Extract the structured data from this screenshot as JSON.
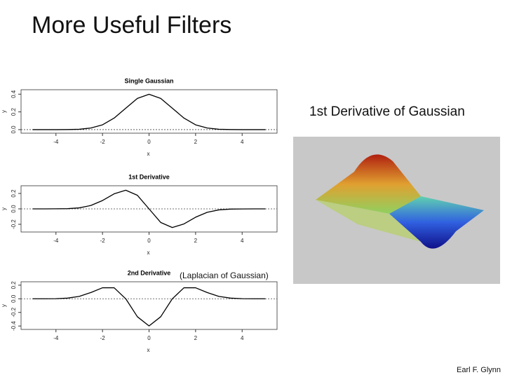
{
  "slide": {
    "title": "More Useful Filters",
    "caption": "1st Derivative of Gaussian",
    "annotation": "(Laplacian of Gaussian)",
    "footer": "Earl F. Glynn"
  },
  "chart_data": [
    {
      "type": "line",
      "title": "Single Gaussian",
      "x_label": "x",
      "y_label": "y",
      "color": "#000000",
      "x": [
        -5,
        -4.5,
        -4,
        -3.5,
        -3,
        -2.5,
        -2,
        -1.5,
        -1,
        -0.5,
        0,
        0.5,
        1,
        1.5,
        2,
        2.5,
        3,
        3.5,
        4,
        4.5,
        5
      ],
      "values": [
        0,
        0,
        0,
        0.001,
        0.004,
        0.018,
        0.054,
        0.13,
        0.242,
        0.352,
        0.399,
        0.352,
        0.242,
        0.13,
        0.054,
        0.018,
        0.004,
        0.001,
        0,
        0,
        0
      ],
      "xlim": [
        -5.5,
        5.5
      ],
      "ylim": [
        -0.04,
        0.45
      ],
      "xticks": [
        -4,
        -2,
        0,
        2,
        4
      ],
      "yticks": [
        {
          "value": 0,
          "label": "0.0"
        },
        {
          "value": 0.2,
          "label": "0.2"
        },
        {
          "value": 0.4,
          "label": "0.4"
        }
      ]
    },
    {
      "type": "line",
      "title": "1st Derivative",
      "x_label": "x",
      "y_label": "y",
      "color": "#000000",
      "x": [
        -5,
        -4.5,
        -4,
        -3.5,
        -3,
        -2.5,
        -2,
        -1.5,
        -1,
        -0.5,
        0,
        0.5,
        1,
        1.5,
        2,
        2.5,
        3,
        3.5,
        4,
        4.5,
        5
      ],
      "values": [
        0,
        0,
        0.001,
        0.003,
        0.013,
        0.044,
        0.108,
        0.195,
        0.242,
        0.176,
        0,
        -0.176,
        -0.242,
        -0.195,
        -0.108,
        -0.044,
        -0.013,
        -0.003,
        -0.001,
        0,
        0
      ],
      "xlim": [
        -5.5,
        5.5
      ],
      "ylim": [
        -0.3,
        0.3
      ],
      "xticks": [
        -4,
        -2,
        0,
        2,
        4
      ],
      "yticks": [
        {
          "value": -0.2,
          "label": "-0.2"
        },
        {
          "value": 0,
          "label": "0.0"
        },
        {
          "value": 0.2,
          "label": "0.2"
        }
      ]
    },
    {
      "type": "line",
      "title": "2nd Derivative",
      "x_label": "x",
      "y_label": "y",
      "color": "#000000",
      "x": [
        -5,
        -4.5,
        -4,
        -3.5,
        -3,
        -2.5,
        -2,
        -1.5,
        -1,
        -0.5,
        0,
        0.5,
        1,
        1.5,
        2,
        2.5,
        3,
        3.5,
        4,
        4.5,
        5
      ],
      "values": [
        0,
        0,
        0.002,
        0.01,
        0.035,
        0.092,
        0.162,
        0.162,
        0,
        -0.264,
        -0.399,
        -0.264,
        0,
        0.162,
        0.162,
        0.092,
        0.035,
        0.01,
        0.002,
        0,
        0
      ],
      "xlim": [
        -5.5,
        5.5
      ],
      "ylim": [
        -0.45,
        0.25
      ],
      "xticks": [
        -4,
        -2,
        0,
        2,
        4
      ],
      "yticks": [
        {
          "value": -0.4,
          "label": "-0.4"
        },
        {
          "value": -0.2,
          "label": "-0.2"
        },
        {
          "value": 0,
          "label": "0.0"
        },
        {
          "value": 0.2,
          "label": "0.2"
        }
      ]
    }
  ]
}
